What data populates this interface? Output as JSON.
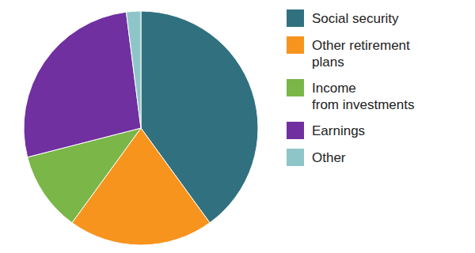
{
  "chart_data": {
    "type": "pie",
    "categories": [
      "Social security",
      "Other retirement\nplans",
      "Income\nfrom investments",
      "Earnings",
      "Other"
    ],
    "values": [
      40,
      20,
      11,
      27,
      2
    ],
    "colors": [
      "#31717f",
      "#f7941d",
      "#7ab648",
      "#7030a0",
      "#8ec5c8"
    ],
    "legend": "right"
  }
}
